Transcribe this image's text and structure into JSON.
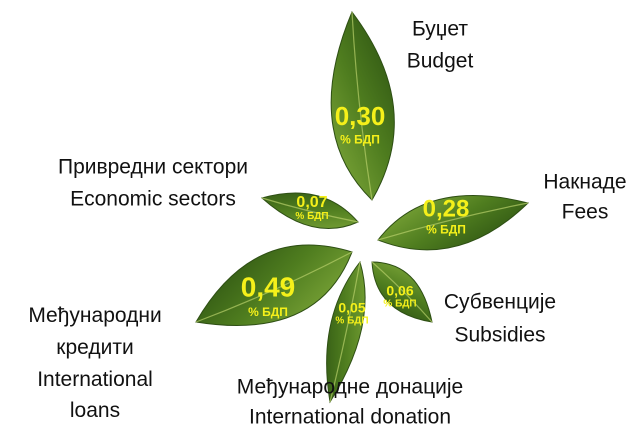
{
  "leaves": [
    {
      "label_sr": "Буџет",
      "label_en": "Budget",
      "value": "0,30",
      "unit": "% БДП"
    },
    {
      "label_sr": "Накнаде",
      "label_en": "Fees",
      "value": "0,28",
      "unit": "% БДП"
    },
    {
      "label_sr": "Привредни сектори",
      "label_en": "Economic sectors",
      "value": "0,07",
      "unit": "% БДП"
    },
    {
      "label_sr": "Међународни кредити",
      "label_en": "International loans",
      "value": "0,49",
      "unit": "% БДП"
    },
    {
      "label_sr": "Међународне донације",
      "label_en": "International donation",
      "value": "0,05",
      "unit": "% БДП"
    },
    {
      "label_sr": "Субвенције",
      "label_en": "Subsidies",
      "value": "0,06",
      "unit": "% БДП"
    }
  ]
}
